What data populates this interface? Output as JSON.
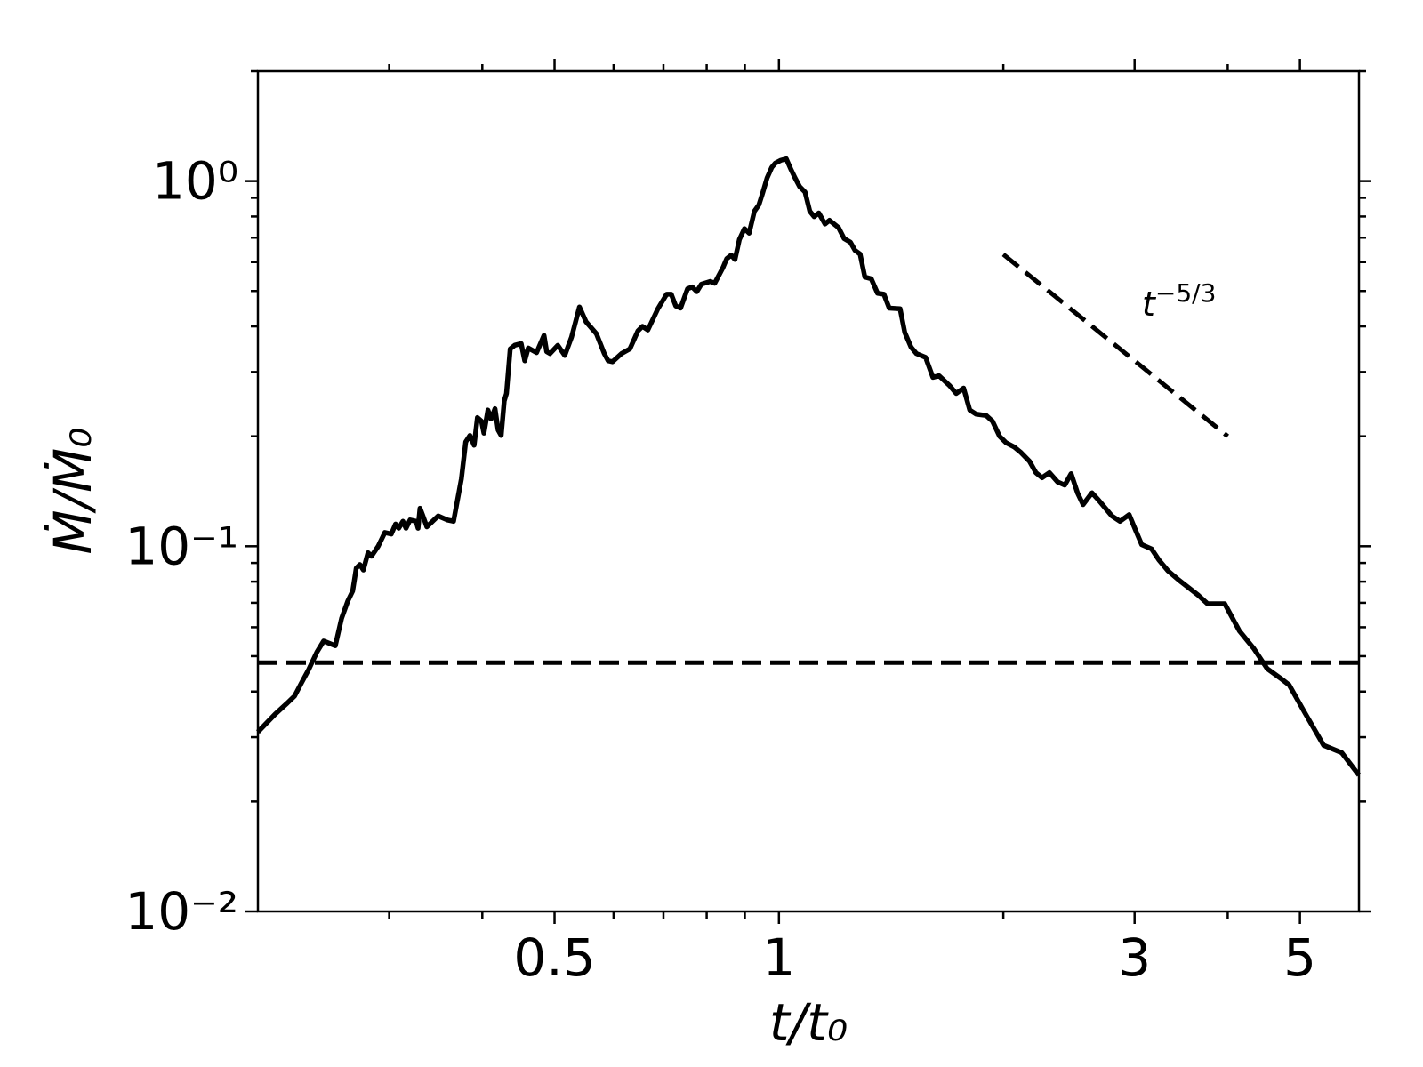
{
  "chart_data": {
    "type": "line",
    "xlabel": "t/t₀",
    "ylabel": "Ṁ/Ṁ₀",
    "xscale": "log",
    "yscale": "log",
    "xlim": [
      0.2,
      6
    ],
    "ylim": [
      0.01,
      2
    ],
    "xticks": [
      0.5,
      1,
      3,
      5
    ],
    "xminorticks": [
      0.3,
      0.4,
      0.6,
      0.7,
      0.8,
      0.9,
      2,
      4
    ],
    "yticks": [
      {
        "value": 0.01,
        "label": "10⁻²"
      },
      {
        "value": 0.1,
        "label": "10⁻¹"
      },
      {
        "value": 1,
        "label": "10⁰"
      }
    ],
    "yminorticks": [
      0.02,
      0.03,
      0.04,
      0.05,
      0.06,
      0.07,
      0.08,
      0.09,
      0.2,
      0.3,
      0.4,
      0.5,
      0.6,
      0.7,
      0.8,
      0.9,
      2
    ],
    "series": [
      {
        "color": "#000000",
        "x": [
          0.2,
          0.211,
          0.219,
          0.224,
          0.229,
          0.234,
          0.24,
          0.245,
          0.254,
          0.259,
          0.264,
          0.268,
          0.271,
          0.274,
          0.277,
          0.281,
          0.284,
          0.29,
          0.296,
          0.302,
          0.306,
          0.309,
          0.313,
          0.316,
          0.32,
          0.326,
          0.328,
          0.33,
          0.333,
          0.337,
          0.349,
          0.359,
          0.366,
          0.375,
          0.38,
          0.385,
          0.39,
          0.394,
          0.399,
          0.402,
          0.407,
          0.411,
          0.416,
          0.42,
          0.424,
          0.428,
          0.431,
          0.436,
          0.442,
          0.451,
          0.456,
          0.461,
          0.473,
          0.484,
          0.488,
          0.493,
          0.505,
          0.516,
          0.527,
          0.54,
          0.551,
          0.569,
          0.583,
          0.59,
          0.598,
          0.615,
          0.631,
          0.647,
          0.656,
          0.667,
          0.688,
          0.707,
          0.717,
          0.727,
          0.738,
          0.754,
          0.765,
          0.776,
          0.787,
          0.809,
          0.82,
          0.841,
          0.851,
          0.863,
          0.873,
          0.885,
          0.899,
          0.912,
          0.927,
          0.94,
          0.951,
          0.964,
          0.978,
          0.989,
          1.006,
          1.023,
          1.037,
          1.051,
          1.066,
          1.084,
          1.1,
          1.115,
          1.131,
          1.153,
          1.169,
          1.202,
          1.223,
          1.247,
          1.265,
          1.285,
          1.304,
          1.33,
          1.356,
          1.383,
          1.406,
          1.454,
          1.475,
          1.504,
          1.529,
          1.573,
          1.609,
          1.64,
          1.695,
          1.729,
          1.769,
          1.803,
          1.839,
          1.897,
          1.934,
          1.977,
          2.017,
          2.068,
          2.109,
          2.168,
          2.212,
          2.254,
          2.306,
          2.365,
          2.418,
          2.466,
          2.515,
          2.559,
          2.63,
          2.682,
          2.742,
          2.797,
          2.868,
          2.95,
          3.007,
          3.067,
          3.162,
          3.234,
          3.327,
          3.439,
          3.566,
          3.656,
          3.758,
          3.963,
          4.148,
          4.335,
          4.519,
          4.73,
          4.836,
          5.08,
          5.38,
          5.69,
          6
        ],
        "values": [
          0.031,
          0.0347,
          0.0372,
          0.0389,
          0.0424,
          0.046,
          0.0513,
          0.055,
          0.0534,
          0.0635,
          0.0708,
          0.0754,
          0.0871,
          0.0891,
          0.0861,
          0.096,
          0.0939,
          0.1,
          0.109,
          0.108,
          0.115,
          0.112,
          0.117,
          0.112,
          0.118,
          0.117,
          0.112,
          0.127,
          0.121,
          0.113,
          0.121,
          0.118,
          0.117,
          0.153,
          0.193,
          0.201,
          0.189,
          0.225,
          0.22,
          0.204,
          0.236,
          0.223,
          0.238,
          0.208,
          0.201,
          0.25,
          0.262,
          0.347,
          0.355,
          0.359,
          0.322,
          0.349,
          0.339,
          0.378,
          0.341,
          0.337,
          0.355,
          0.333,
          0.374,
          0.452,
          0.412,
          0.382,
          0.337,
          0.322,
          0.32,
          0.337,
          0.347,
          0.389,
          0.4,
          0.391,
          0.447,
          0.49,
          0.49,
          0.455,
          0.449,
          0.507,
          0.513,
          0.498,
          0.522,
          0.531,
          0.525,
          0.579,
          0.613,
          0.627,
          0.61,
          0.692,
          0.741,
          0.72,
          0.827,
          0.861,
          0.928,
          1.02,
          1.09,
          1.12,
          1.14,
          1.15,
          1.08,
          1.02,
          0.966,
          0.933,
          0.827,
          0.799,
          0.818,
          0.763,
          0.781,
          0.746,
          0.696,
          0.68,
          0.646,
          0.631,
          0.546,
          0.54,
          0.493,
          0.49,
          0.449,
          0.447,
          0.385,
          0.351,
          0.337,
          0.329,
          0.29,
          0.293,
          0.275,
          0.262,
          0.271,
          0.236,
          0.23,
          0.228,
          0.22,
          0.2,
          0.192,
          0.187,
          0.181,
          0.171,
          0.159,
          0.154,
          0.159,
          0.15,
          0.147,
          0.158,
          0.14,
          0.13,
          0.14,
          0.134,
          0.127,
          0.121,
          0.117,
          0.122,
          0.111,
          0.101,
          0.0983,
          0.0917,
          0.0856,
          0.0808,
          0.0763,
          0.0733,
          0.0696,
          0.0696,
          0.0586,
          0.0525,
          0.0462,
          0.0432,
          0.0417,
          0.0349,
          0.0285,
          0.0272,
          0.0236
        ]
      }
    ],
    "reference_level": 0.048,
    "power_law": {
      "x": [
        2,
        4
      ],
      "values": [
        0.63,
        0.2
      ]
    },
    "annotation": {
      "base": "t",
      "exponent": "−5/3"
    }
  }
}
